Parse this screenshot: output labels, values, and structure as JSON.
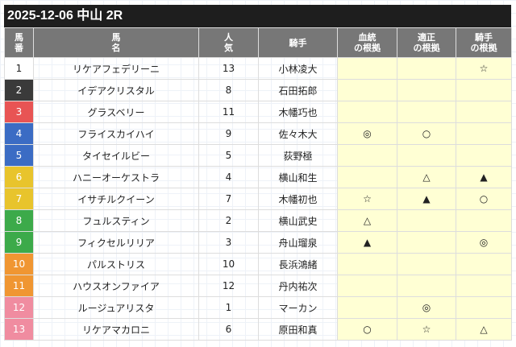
{
  "title": "2025-12-06 中山 2R",
  "headers": [
    "馬\n番",
    "馬\n名",
    "人\n気",
    "騎手",
    "血統\nの根拠",
    "適正\nの根拠",
    "騎手\nの根拠"
  ],
  "rows": [
    {
      "no": "1",
      "name": "リケアフェデリーニ",
      "pop": "13",
      "jockey": "小林凌大",
      "m1": "",
      "m2": "",
      "m3": "☆",
      "color": "#ffffff",
      "fg": "#222222"
    },
    {
      "no": "2",
      "name": "イデアクリスタル",
      "pop": "8",
      "jockey": "石田拓郎",
      "m1": "",
      "m2": "",
      "m3": "",
      "color": "#3a3a3a",
      "fg": "#ffffff"
    },
    {
      "no": "3",
      "name": "グラスベリー",
      "pop": "11",
      "jockey": "木幡巧也",
      "m1": "",
      "m2": "",
      "m3": "",
      "color": "#e85454",
      "fg": "#ffffff"
    },
    {
      "no": "4",
      "name": "フライスカイハイ",
      "pop": "9",
      "jockey": "佐々木大",
      "m1": "◎",
      "m2": "○",
      "m3": "",
      "color": "#3b6cc4",
      "fg": "#ffffff"
    },
    {
      "no": "5",
      "name": "タイセイルビー",
      "pop": "5",
      "jockey": "荻野極",
      "m1": "",
      "m2": "",
      "m3": "",
      "color": "#3b6cc4",
      "fg": "#ffffff"
    },
    {
      "no": "6",
      "name": "ハニーオーケストラ",
      "pop": "4",
      "jockey": "横山和生",
      "m1": "",
      "m2": "△",
      "m3": "▲",
      "color": "#e8c42c",
      "fg": "#ffffff"
    },
    {
      "no": "7",
      "name": "イサチルクイーン",
      "pop": "7",
      "jockey": "木幡初也",
      "m1": "☆",
      "m2": "▲",
      "m3": "○",
      "color": "#e8c42c",
      "fg": "#ffffff"
    },
    {
      "no": "8",
      "name": "フュルスティン",
      "pop": "2",
      "jockey": "横山武史",
      "m1": "△",
      "m2": "",
      "m3": "",
      "color": "#3caa4a",
      "fg": "#ffffff"
    },
    {
      "no": "9",
      "name": "フィクセルリリア",
      "pop": "3",
      "jockey": "舟山瑠泉",
      "m1": "▲",
      "m2": "",
      "m3": "◎",
      "color": "#3caa4a",
      "fg": "#ffffff"
    },
    {
      "no": "10",
      "name": "パルストリス",
      "pop": "10",
      "jockey": "長浜鴻緒",
      "m1": "",
      "m2": "",
      "m3": "",
      "color": "#f09632",
      "fg": "#ffffff"
    },
    {
      "no": "11",
      "name": "ハウスオンファイア",
      "pop": "12",
      "jockey": "丹内祐次",
      "m1": "",
      "m2": "",
      "m3": "",
      "color": "#f09632",
      "fg": "#ffffff"
    },
    {
      "no": "12",
      "name": "ルージュアリスタ",
      "pop": "1",
      "jockey": "マーカン",
      "m1": "",
      "m2": "◎",
      "m3": "",
      "color": "#f08ca0",
      "fg": "#ffffff"
    },
    {
      "no": "13",
      "name": "リケアマカロニ",
      "pop": "6",
      "jockey": "原田和真",
      "m1": "○",
      "m2": "☆",
      "m3": "△",
      "color": "#f08ca0",
      "fg": "#ffffff"
    }
  ]
}
